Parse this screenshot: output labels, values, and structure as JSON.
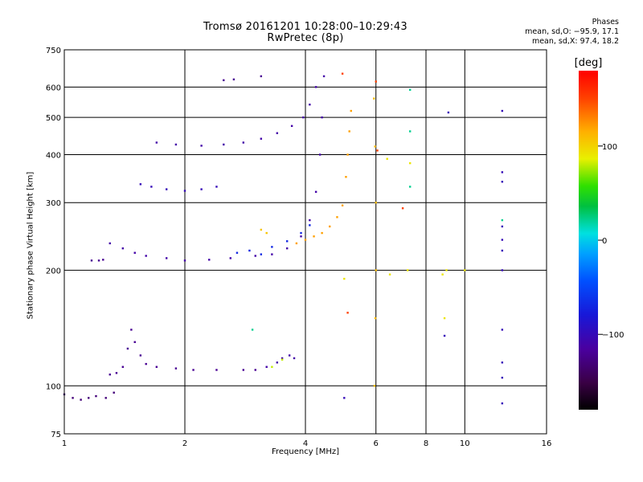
{
  "header": {
    "title_line1": "Tromsø 20161201 10:28:00–10:29:43",
    "title_line2": "RwPretec (8p)",
    "stats_title": "Phases",
    "stats_o": "mean, sd,O: −95.9, 17.1",
    "stats_x": "mean, sd,X:  97.4, 18.2"
  },
  "colorbar": {
    "label": "[deg]",
    "min": -180,
    "max": 180,
    "ticks": [
      {
        "value": 100,
        "label": "100"
      },
      {
        "value": 0,
        "label": "0"
      },
      {
        "value": -100,
        "label": "−100"
      }
    ]
  },
  "chart_data": {
    "type": "scatter",
    "title": "Tromsø 20161201 10:28:00–10:29:43",
    "subtitle": "RwPretec (8p)",
    "xlabel": "Frequency [MHz]",
    "ylabel": "Stationary phase Virtual Height [km]",
    "xscale": "log",
    "yscale": "log",
    "xlim": [
      1,
      16
    ],
    "ylim": [
      75,
      750
    ],
    "xticks": [
      1,
      2,
      4,
      6,
      8,
      10,
      16
    ],
    "yticks": [
      75,
      100,
      200,
      300,
      400,
      500,
      600,
      750
    ],
    "xgrid": [
      2,
      4,
      6,
      8,
      10
    ],
    "ygrid": [
      100,
      200,
      300,
      400,
      500,
      600
    ],
    "color_meaning": "phase [deg]",
    "traces": [
      {
        "name": "",
        "phase": -130,
        "points": [
          [
            1.0,
            95
          ],
          [
            1.05,
            93
          ],
          [
            1.1,
            92
          ],
          [
            1.15,
            93
          ],
          [
            1.2,
            94
          ],
          [
            1.27,
            93
          ],
          [
            1.33,
            96
          ]
        ]
      },
      {
        "name": "",
        "phase": -120,
        "points": [
          [
            1.17,
            212
          ],
          [
            1.22,
            212
          ],
          [
            1.25,
            213
          ]
        ]
      },
      {
        "name": "",
        "phase": -120,
        "points": [
          [
            1.3,
            107
          ],
          [
            1.35,
            108
          ],
          [
            1.4,
            112
          ],
          [
            1.44,
            125
          ],
          [
            1.47,
            140
          ],
          [
            1.5,
            130
          ],
          [
            1.55,
            120
          ],
          [
            1.6,
            114
          ],
          [
            1.7,
            112
          ],
          [
            1.9,
            111
          ],
          [
            2.1,
            110
          ],
          [
            2.4,
            110
          ],
          [
            2.8,
            110
          ],
          [
            3.0,
            110
          ]
        ]
      },
      {
        "name": "",
        "phase": -110,
        "points": [
          [
            3.2,
            112
          ],
          [
            3.4,
            115
          ],
          [
            3.5,
            118
          ],
          [
            3.65,
            120
          ],
          [
            3.75,
            118
          ]
        ]
      },
      {
        "name": "",
        "phase": 80,
        "points": [
          [
            3.3,
            112
          ],
          [
            3.5,
            117
          ]
        ]
      },
      {
        "name": "",
        "phase": -110,
        "points": [
          [
            1.3,
            235
          ],
          [
            1.4,
            228
          ],
          [
            1.5,
            222
          ],
          [
            1.6,
            218
          ],
          [
            1.8,
            215
          ],
          [
            2.0,
            212
          ],
          [
            2.3,
            213
          ],
          [
            2.6,
            215
          ],
          [
            3.0,
            218
          ],
          [
            3.3,
            220
          ],
          [
            3.6,
            228
          ],
          [
            3.9,
            245
          ],
          [
            4.1,
            270
          ],
          [
            4.25,
            320
          ],
          [
            4.35,
            400
          ],
          [
            4.4,
            500
          ],
          [
            4.45,
            640
          ]
        ]
      },
      {
        "name": "",
        "phase": -70,
        "points": [
          [
            2.7,
            222
          ],
          [
            2.9,
            225
          ],
          [
            3.1,
            220
          ],
          [
            3.3,
            230
          ],
          [
            3.6,
            238
          ],
          [
            3.9,
            250
          ],
          [
            4.1,
            262
          ]
        ]
      },
      {
        "name": "",
        "phase": 105,
        "points": [
          [
            3.1,
            255
          ],
          [
            3.2,
            250
          ]
        ]
      },
      {
        "name": "",
        "phase": 120,
        "points": [
          [
            3.8,
            235
          ],
          [
            4.0,
            240
          ],
          [
            4.2,
            245
          ],
          [
            4.4,
            250
          ],
          [
            4.6,
            260
          ],
          [
            4.8,
            275
          ],
          [
            4.95,
            295
          ],
          [
            5.05,
            350
          ],
          [
            5.1,
            400
          ],
          [
            5.15,
            460
          ],
          [
            5.2,
            520
          ]
        ]
      },
      {
        "name": "",
        "phase": -100,
        "points": [
          [
            1.55,
            335
          ],
          [
            1.65,
            330
          ],
          [
            1.8,
            325
          ],
          [
            2.0,
            322
          ],
          [
            2.2,
            325
          ],
          [
            2.4,
            330
          ]
        ]
      },
      {
        "name": "",
        "phase": -110,
        "points": [
          [
            1.7,
            430
          ],
          [
            1.9,
            425
          ],
          [
            2.2,
            422
          ],
          [
            2.5,
            425
          ],
          [
            2.8,
            430
          ],
          [
            3.1,
            440
          ],
          [
            3.4,
            455
          ],
          [
            3.7,
            475
          ],
          [
            3.95,
            500
          ],
          [
            4.1,
            540
          ],
          [
            4.25,
            600
          ]
        ]
      },
      {
        "name": "",
        "phase": -120,
        "points": [
          [
            2.5,
            625
          ],
          [
            2.65,
            628
          ],
          [
            3.1,
            640
          ]
        ]
      },
      {
        "name": "",
        "phase": 110,
        "points": [
          [
            5.95,
            100
          ],
          [
            5.98,
            150
          ],
          [
            6.0,
            200
          ],
          [
            6.0,
            300
          ],
          [
            5.97,
            420
          ],
          [
            5.93,
            560
          ]
        ]
      },
      {
        "name": "",
        "phase": 90,
        "points": [
          [
            6.4,
            390
          ],
          [
            7.3,
            380
          ],
          [
            7.2,
            200
          ],
          [
            8.8,
            195
          ],
          [
            9.0,
            200
          ],
          [
            10.0,
            200
          ],
          [
            6.5,
            195
          ],
          [
            8.9,
            150
          ],
          [
            5.0,
            190
          ]
        ]
      },
      {
        "name": "",
        "phase": -100,
        "points": [
          [
            12.4,
            520
          ],
          [
            12.4,
            360
          ],
          [
            12.4,
            340
          ],
          [
            12.4,
            260
          ],
          [
            12.4,
            240
          ],
          [
            12.4,
            225
          ],
          [
            12.4,
            200
          ],
          [
            12.4,
            140
          ],
          [
            12.4,
            115
          ],
          [
            12.4,
            105
          ],
          [
            12.4,
            90
          ],
          [
            9.1,
            515
          ],
          [
            8.9,
            135
          ],
          [
            5.0,
            93
          ]
        ]
      },
      {
        "name": "",
        "phase": 20,
        "points": [
          [
            7.3,
            590
          ],
          [
            7.3,
            460
          ],
          [
            7.3,
            330
          ],
          [
            12.4,
            270
          ],
          [
            2.95,
            140
          ]
        ]
      },
      {
        "name": "",
        "phase": 150,
        "points": [
          [
            5.1,
            155
          ],
          [
            7.0,
            290
          ],
          [
            6.0,
            620
          ],
          [
            4.95,
            650
          ],
          [
            6.05,
            410
          ]
        ]
      }
    ]
  }
}
